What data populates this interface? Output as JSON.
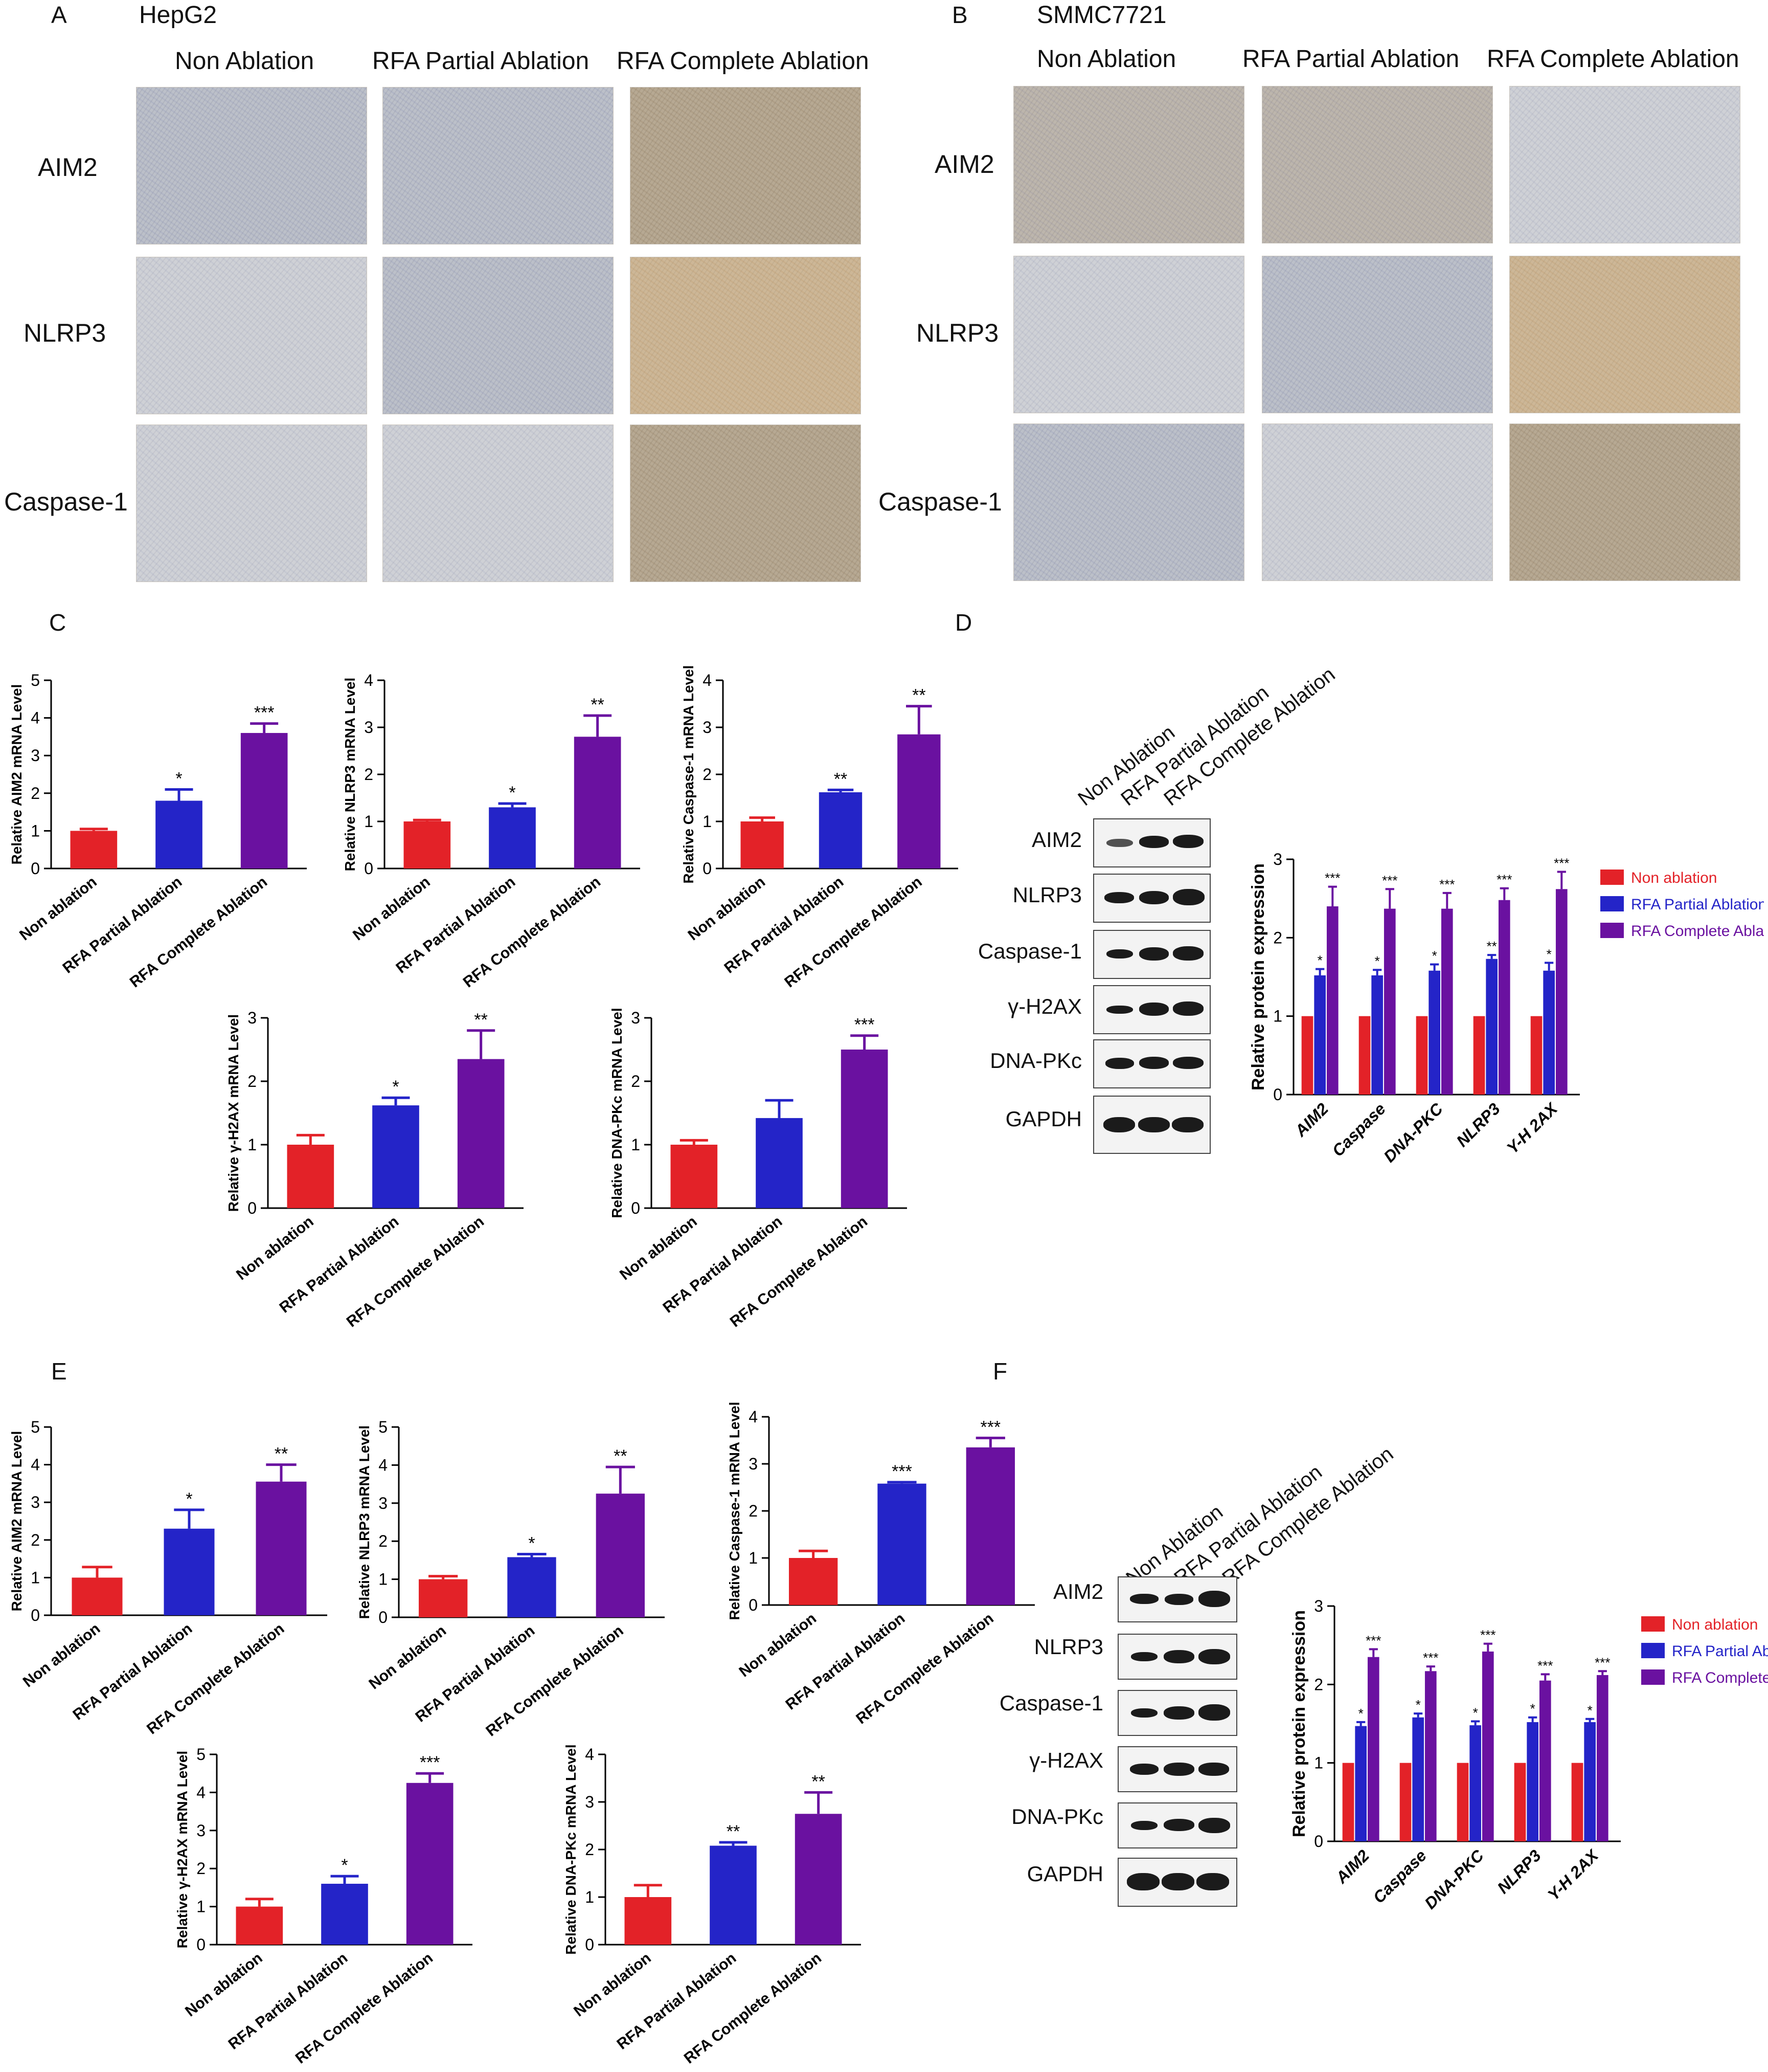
{
  "panel_letters": {
    "a": "A",
    "b": "B",
    "c": "C",
    "d": "D",
    "e": "E",
    "f": "F"
  },
  "ihc": {
    "A": {
      "cell_line": "HepG2",
      "columns": [
        "Non Ablation",
        "RFA Partial Ablation",
        "RFA Complete Ablation"
      ],
      "rows": [
        "AIM2",
        "NLRP3",
        "Caspase-1"
      ]
    },
    "B": {
      "cell_line": "SMMC7721",
      "columns": [
        "Non Ablation",
        "RFA Partial Ablation",
        "RFA Complete Ablation"
      ],
      "rows": [
        "AIM2",
        "NLRP3",
        "Caspase-1"
      ]
    }
  },
  "blot_D": {
    "columns": [
      "Non Ablation",
      "RFA Partial Ablation",
      "RFA Complete Ablation"
    ],
    "rows": [
      "AIM2",
      "NLRP3",
      "Caspase-1",
      "γ-H2AX",
      "DNA-PKc",
      "GAPDH"
    ]
  },
  "blot_F": {
    "columns": [
      "Non Ablation",
      "RFA Partial Ablation",
      "RFA Complete Ablation"
    ],
    "rows": [
      "AIM2",
      "NLRP3",
      "Caspase-1",
      "γ-H2AX",
      "DNA-PKc",
      "GAPDH"
    ]
  },
  "colors": {
    "non": "#e32228",
    "partial": "#2424c8",
    "complete": "#6a11a0"
  },
  "chart_data": [
    {
      "panel": "C",
      "type": "bar",
      "categories": [
        "Non ablation",
        "RFA Partial Ablation",
        "RFA Complete Ablation"
      ],
      "values": [
        1.0,
        1.8,
        3.6
      ],
      "errors": [
        0.05,
        0.3,
        0.25
      ],
      "sig": [
        "",
        "*",
        "***"
      ],
      "ylabel": "Relative AIM2 mRNA Level",
      "ylim": [
        0,
        5
      ],
      "ticks": [
        0,
        1,
        2,
        3,
        4,
        5
      ]
    },
    {
      "panel": "C",
      "type": "bar",
      "categories": [
        "Non ablation",
        "RFA Partial Ablation",
        "RFA Complete Ablation"
      ],
      "values": [
        1.0,
        1.3,
        2.8
      ],
      "errors": [
        0.03,
        0.08,
        0.45
      ],
      "sig": [
        "",
        "*",
        "**"
      ],
      "ylabel": "Relative NLRP3 mRNA Level",
      "ylim": [
        0,
        4
      ],
      "ticks": [
        0,
        1,
        2,
        3,
        4
      ]
    },
    {
      "panel": "C",
      "type": "bar",
      "categories": [
        "Non ablation",
        "RFA Partial Ablation",
        "RFA Complete Ablation"
      ],
      "values": [
        1.0,
        1.62,
        2.85
      ],
      "errors": [
        0.08,
        0.05,
        0.6
      ],
      "sig": [
        "",
        "**",
        "**"
      ],
      "ylabel": "Relative Caspase-1 mRNA Level",
      "ylim": [
        0,
        4
      ],
      "ticks": [
        0,
        1,
        2,
        3,
        4
      ]
    },
    {
      "panel": "C",
      "type": "bar",
      "categories": [
        "Non ablation",
        "RFA Partial Ablation",
        "RFA Complete Ablation"
      ],
      "values": [
        1.0,
        1.62,
        2.35
      ],
      "errors": [
        0.15,
        0.12,
        0.45
      ],
      "sig": [
        "",
        "*",
        "**"
      ],
      "ylabel": "Relative γ-H2AX mRNA Level",
      "ylim": [
        0,
        3
      ],
      "ticks": [
        0,
        1,
        2,
        3
      ]
    },
    {
      "panel": "C",
      "type": "bar",
      "categories": [
        "Non ablation",
        "RFA Partial Ablation",
        "RFA Complete Ablation"
      ],
      "values": [
        1.0,
        1.42,
        2.5
      ],
      "errors": [
        0.07,
        0.28,
        0.22
      ],
      "sig": [
        "",
        "",
        "***"
      ],
      "ylabel": "Relative DNA-PKc mRNA Level",
      "ylim": [
        0,
        3
      ],
      "ticks": [
        0,
        1,
        2,
        3
      ]
    },
    {
      "panel": "D",
      "type": "bar",
      "categories": [
        "AIM2",
        "Caspase",
        "DNA-PKC",
        "NLRP3",
        "Y-H 2AX"
      ],
      "series": [
        {
          "name": "Non ablation",
          "values": [
            1.0,
            1.0,
            1.0,
            1.0,
            1.0
          ],
          "errors": [
            0,
            0,
            0,
            0,
            0
          ],
          "sig": [
            "",
            "",
            "",
            "",
            ""
          ]
        },
        {
          "name": "RFA Partial Ablation",
          "values": [
            1.52,
            1.52,
            1.58,
            1.73,
            1.58
          ],
          "errors": [
            0.08,
            0.07,
            0.08,
            0.05,
            0.1
          ],
          "sig": [
            "*",
            "*",
            "*",
            "**",
            "*"
          ]
        },
        {
          "name": "RFA Complete Ablation",
          "values": [
            2.4,
            2.37,
            2.37,
            2.48,
            2.62
          ],
          "errors": [
            0.25,
            0.25,
            0.2,
            0.15,
            0.22
          ],
          "sig": [
            "***",
            "***",
            "***",
            "***",
            "***"
          ]
        }
      ],
      "ylabel": "Relative protein expression",
      "ylim": [
        0,
        3
      ],
      "ticks": [
        0,
        1,
        2,
        3
      ],
      "legend": "right"
    },
    {
      "panel": "E",
      "type": "bar",
      "categories": [
        "Non ablation",
        "RFA Partial Ablation",
        "RFA Complete Ablation"
      ],
      "values": [
        1.0,
        2.3,
        3.55
      ],
      "errors": [
        0.28,
        0.5,
        0.45
      ],
      "sig": [
        "",
        "*",
        "**"
      ],
      "ylabel": "Relative AIM2 mRNA Level",
      "ylim": [
        0,
        5
      ],
      "ticks": [
        0,
        1,
        2,
        3,
        4,
        5
      ]
    },
    {
      "panel": "E",
      "type": "bar",
      "categories": [
        "Non ablation",
        "RFA Partial Ablation",
        "RFA Complete Ablation"
      ],
      "values": [
        1.0,
        1.58,
        3.25
      ],
      "errors": [
        0.08,
        0.08,
        0.7
      ],
      "sig": [
        "",
        "*",
        "**"
      ],
      "ylabel": "Relative NLRP3 mRNA Level",
      "ylim": [
        0,
        5
      ],
      "ticks": [
        0,
        1,
        2,
        3,
        4,
        5
      ]
    },
    {
      "panel": "E",
      "type": "bar",
      "categories": [
        "Non ablation",
        "RFA Partial Ablation",
        "RFA Complete Ablation"
      ],
      "values": [
        1.0,
        2.58,
        3.35
      ],
      "errors": [
        0.15,
        0.03,
        0.2
      ],
      "sig": [
        "",
        "***",
        "***"
      ],
      "ylabel": "Relative Caspase-1 mRNA Level",
      "ylim": [
        0,
        4
      ],
      "ticks": [
        0,
        1,
        2,
        3,
        4
      ]
    },
    {
      "panel": "E",
      "type": "bar",
      "categories": [
        "Non ablation",
        "RFA Partial Ablation",
        "RFA Complete Ablation"
      ],
      "values": [
        1.0,
        1.6,
        4.25
      ],
      "errors": [
        0.2,
        0.2,
        0.25
      ],
      "sig": [
        "",
        "*",
        "***"
      ],
      "ylabel": "Relative γ-H2AX mRNA Level",
      "ylim": [
        0,
        5
      ],
      "ticks": [
        0,
        1,
        2,
        3,
        4,
        5
      ]
    },
    {
      "panel": "E",
      "type": "bar",
      "categories": [
        "Non ablation",
        "RFA Partial Ablation",
        "RFA Complete Ablation"
      ],
      "values": [
        1.0,
        2.08,
        2.75
      ],
      "errors": [
        0.25,
        0.07,
        0.45
      ],
      "sig": [
        "",
        "**",
        "**"
      ],
      "ylabel": "Relative DNA-PKc mRNA Level",
      "ylim": [
        0,
        4
      ],
      "ticks": [
        0,
        1,
        2,
        3,
        4
      ]
    },
    {
      "panel": "F",
      "type": "bar",
      "categories": [
        "AIM2",
        "Caspase",
        "DNA-PKC",
        "NLRP3",
        "Y-H 2AX"
      ],
      "series": [
        {
          "name": "Non ablation",
          "values": [
            1.0,
            1.0,
            1.0,
            1.0,
            1.0
          ],
          "errors": [
            0,
            0,
            0,
            0,
            0
          ],
          "sig": [
            "",
            "",
            "",
            "",
            ""
          ]
        },
        {
          "name": "RFA Partial Ablation",
          "values": [
            1.47,
            1.58,
            1.48,
            1.52,
            1.52
          ],
          "errors": [
            0.05,
            0.05,
            0.05,
            0.06,
            0.04
          ],
          "sig": [
            "*",
            "*",
            "*",
            "*",
            "*"
          ]
        },
        {
          "name": "RFA Complete Ablation",
          "values": [
            2.35,
            2.17,
            2.42,
            2.05,
            2.12
          ],
          "errors": [
            0.1,
            0.06,
            0.1,
            0.08,
            0.05
          ],
          "sig": [
            "***",
            "***",
            "***",
            "***",
            "***"
          ]
        }
      ],
      "ylabel": "Relative protein expression",
      "ylim": [
        0,
        3
      ],
      "ticks": [
        0,
        1,
        2,
        3
      ],
      "legend": "right"
    }
  ]
}
